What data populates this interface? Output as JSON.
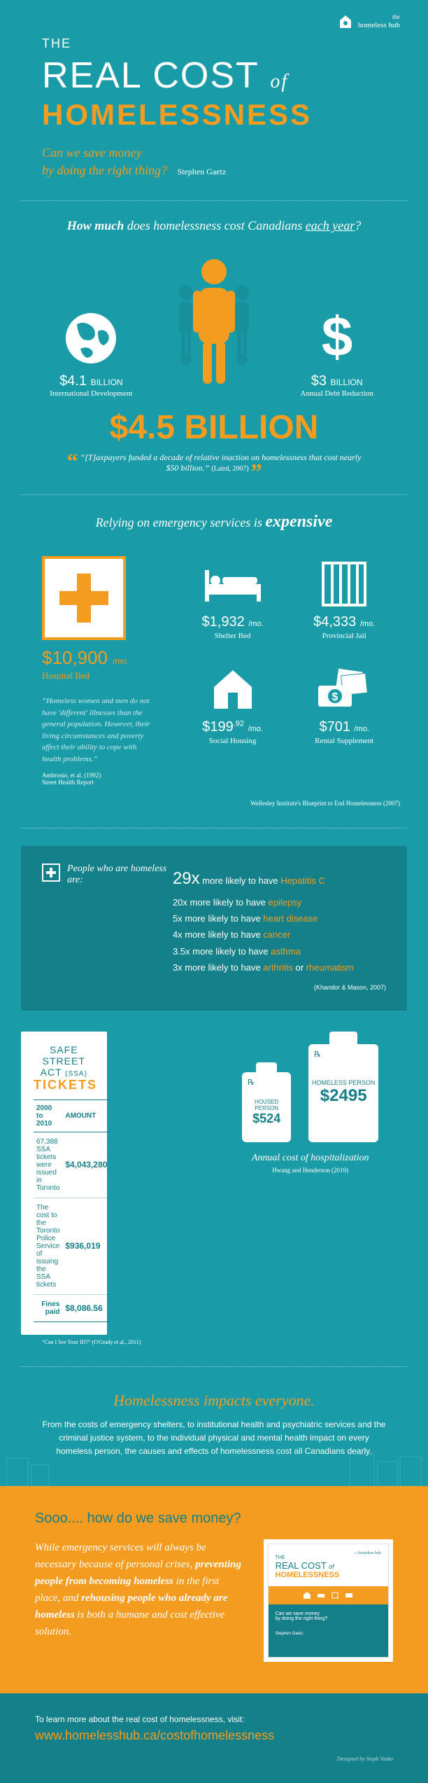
{
  "brand": {
    "the": "the",
    "name": "homeless hub"
  },
  "header": {
    "the": "THE",
    "line1a": "REAL COST",
    "line1b": "of",
    "line2": "HOMELESSNESS",
    "sub1": "Can we save money",
    "sub2": "by doing the right thing?",
    "author": "Stephen Gaetz"
  },
  "cost_section": {
    "title_a": "How much",
    "title_b": " does homelessness cost Canadians ",
    "title_c": "each year",
    "title_d": "?",
    "items": [
      {
        "value": "$4.1",
        "unit": "BILLION",
        "label": "International Development"
      },
      {
        "value": "$3",
        "unit": "BILLION",
        "label": "Annual Debt Reduction"
      }
    ],
    "total": "$4.5 BILLION",
    "quote": "“[T]axpayers funded a decade of relative inaction on homelessness that cost nearly $50 billion.”",
    "quote_cite": "(Laird, 2007)"
  },
  "services": {
    "title_a": "Relying on emergency services is ",
    "title_b": "expensive",
    "hospital": {
      "price": "$10,900",
      "per": "/mo.",
      "name": "Hospital Bed"
    },
    "quote": "“Homeless women and men do not have 'different' illnesses than the general population. However, their living circumstances and poverty affect their ability to cope with health problems.”",
    "quote_cite1": "Ambrosio, et al. (1992)",
    "quote_cite2": "Street Health Report",
    "cards": [
      {
        "price": "$1,932",
        "per": "/mo.",
        "name": "Shelter Bed"
      },
      {
        "price": "$4,333",
        "per": "/mo.",
        "name": "Provincial Jail"
      },
      {
        "price": "$199.92",
        "per": "/mo.",
        "name": "Social Housing",
        "sup": ".92",
        "price_main": "$199"
      },
      {
        "price": "$701",
        "per": "/mo.",
        "name": "Rental Supplement"
      }
    ],
    "source": "Wellesley Institute's Blueprint to End Homelessness (2007)"
  },
  "likely": {
    "intro": "People who are homeless are:",
    "rows": [
      {
        "num": "29x",
        "text": " more likely to have ",
        "cond": "Hepatitis C",
        "big": true
      },
      {
        "num": "20x",
        "text": " more likely to have ",
        "cond": "epilepsy"
      },
      {
        "num": "5x",
        "text": " more likely to have ",
        "cond": "heart disease"
      },
      {
        "num": "4x",
        "text": " more likely to have ",
        "cond": "cancer"
      },
      {
        "num": "3.5x",
        "text": " more likely to have ",
        "cond": "asthma"
      },
      {
        "num": "3x",
        "text": " more likely to have ",
        "cond": "arthritis",
        "or": " or ",
        "cond2": "rheumatism"
      }
    ],
    "cite": "(Khandor & Mason, 2007)"
  },
  "tickets": {
    "title1": "SAFE STREET ACT",
    "ssa": "(SSA)",
    "title2": "TICKETS",
    "col1": "2000 to 2010",
    "col2": "AMOUNT",
    "rows": [
      {
        "desc": "67,388 SSA tickets were issued in Toronto",
        "amt": "$4,043,280"
      },
      {
        "desc": "The cost to the Toronto Police Service of issuing the SSA tickets",
        "amt": "$936,019"
      }
    ],
    "fines_label": "Fines paid",
    "fines_amt": "$8,086.56",
    "cite": "“Can I See Your ID?” (O'Grady et al., 2011)"
  },
  "bottles": {
    "small_label": "HOUSED PERSON",
    "small_price": "$524",
    "big_label": "HOMELESS PERSON",
    "big_price": "$2495",
    "caption": "Annual cost of hospitalization",
    "cite": "Hwang and Henderson (2010)"
  },
  "impacts": {
    "title": "Homelessness impacts everyone.",
    "body": "From the costs of emergency shelters, to institutional health and psychiatric services and the criminal justice system, to the individual physical and mental health impact on every homeless person, the causes and effects of homelessness cost all Canadians dearly."
  },
  "save": {
    "title": "Sooo.... how do we save money?",
    "body_a": "While emergency services will always be necessary because of personal crises, ",
    "body_b": "preventing people from becoming homeless",
    "body_c": " in the first place, and ",
    "body_d": "rehousing people who already are homeless",
    "body_e": " is both a humane and cost effective solution.",
    "thumb": {
      "the": "THE",
      "l1a": "REAL COST",
      "l1b": "of",
      "l2": "HOMELESSNESS",
      "bot1": "Can we save money",
      "bot2": "by doing the right thing?",
      "author": "Stephen Gaetz"
    }
  },
  "footer": {
    "label": "To learn more about the real cost of homelessness, visit:",
    "url": "www.homelesshub.ca/costofhomelessness",
    "credit": "Designed by Steph Vasko"
  },
  "colors": {
    "bg": "#1a9ba8",
    "accent": "#f39c1f",
    "dark": "#14808a"
  }
}
